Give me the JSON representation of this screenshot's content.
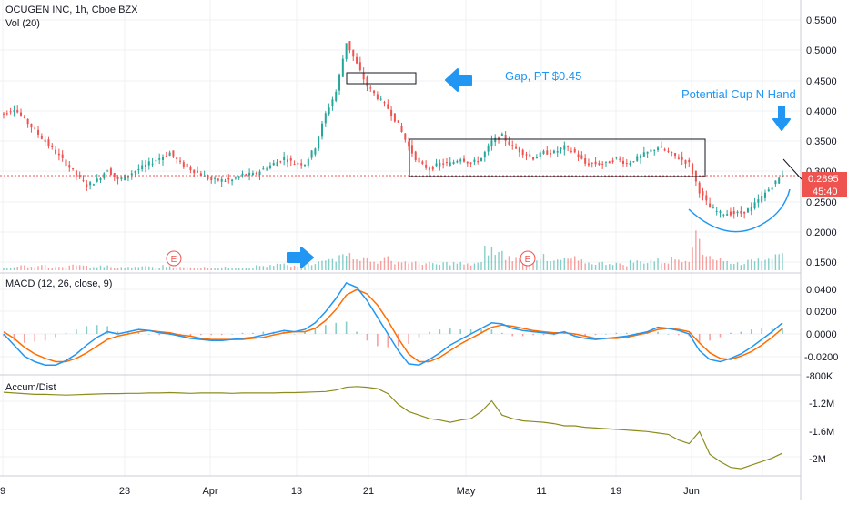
{
  "header": {
    "symbol_line": "OCUGEN INC, 1h, Cboe BZX",
    "volume_label": "Vol (20)"
  },
  "colors": {
    "up": "#26a69a",
    "down": "#ef5350",
    "annotation": "#2196f3",
    "macd_line": "#2196f3",
    "signal_line": "#ff6d00",
    "accum_line": "#8c8c1e",
    "price_tag_bg": "#ef5350",
    "grid": "#eef0f3",
    "axis_text": "#131722",
    "price_dotted": "#ef5350"
  },
  "x_axis": {
    "tick_labels": [
      "9",
      "23",
      "Apr",
      "13",
      "21",
      "May",
      "11",
      "19",
      "Jun"
    ]
  },
  "price_axis": {
    "ticks": [
      "0.5500",
      "0.5000",
      "0.4500",
      "0.4000",
      "0.3500",
      "0.3000",
      "0.2500",
      "0.2000",
      "0.1500"
    ],
    "current_price": "0.2895",
    "countdown": "45:40"
  },
  "annotations": {
    "gap_text": "Gap, PT $0.45",
    "cup_text": "Potential Cup N Hand",
    "earnings_marker": "E"
  },
  "macd": {
    "label": "MACD (12, 26, close, 9)",
    "ticks": [
      "0.0400",
      "0.0200",
      "0.0000",
      "-0.0200"
    ]
  },
  "accum": {
    "label": "Accum/Dist",
    "ticks": [
      "-800K",
      "-1.2M",
      "-1.6M",
      "-2M"
    ]
  },
  "chart_data": [
    {
      "type": "candlestick",
      "title": "OCUGEN INC, 1h, Cboe BZX",
      "x_ticks": [
        "9",
        "23",
        "Apr",
        "13",
        "21",
        "May",
        "11",
        "19",
        "Jun"
      ],
      "ylim": [
        0.13,
        0.57
      ],
      "last_price": 0.2895,
      "series": [
        {
          "name": "price",
          "close": [
            0.4,
            0.41,
            0.39,
            0.37,
            0.35,
            0.33,
            0.31,
            0.29,
            0.27,
            0.28,
            0.3,
            0.28,
            0.29,
            0.3,
            0.31,
            0.32,
            0.33,
            0.31,
            0.3,
            0.29,
            0.28,
            0.28,
            0.28,
            0.29,
            0.29,
            0.3,
            0.31,
            0.32,
            0.31,
            0.31,
            0.34,
            0.4,
            0.44,
            0.53,
            0.49,
            0.45,
            0.43,
            0.41,
            0.38,
            0.34,
            0.31,
            0.3,
            0.31,
            0.31,
            0.32,
            0.31,
            0.32,
            0.35,
            0.36,
            0.34,
            0.33,
            0.32,
            0.33,
            0.33,
            0.34,
            0.33,
            0.31,
            0.31,
            0.31,
            0.32,
            0.31,
            0.32,
            0.33,
            0.34,
            0.33,
            0.32,
            0.31,
            0.26,
            0.23,
            0.22,
            0.22,
            0.22,
            0.23,
            0.25,
            0.27,
            0.29
          ]
        }
      ]
    },
    {
      "type": "bar",
      "name": "Vol (20)",
      "values": [
        2,
        2,
        3,
        2,
        3,
        2,
        2,
        4,
        3,
        2,
        3,
        2,
        2,
        2,
        3,
        2,
        3,
        2,
        2,
        2,
        2,
        2,
        2,
        2,
        2,
        3,
        3,
        4,
        3,
        3,
        4,
        6,
        8,
        14,
        10,
        8,
        6,
        8,
        6,
        6,
        5,
        5,
        4,
        5,
        5,
        4,
        5,
        14,
        12,
        9,
        8,
        7,
        9,
        6,
        7,
        8,
        6,
        5,
        5,
        5,
        4,
        6,
        6,
        7,
        6,
        8,
        8,
        22,
        12,
        8,
        6,
        5,
        6,
        8,
        10,
        14
      ]
    },
    {
      "type": "line",
      "name": "MACD (12, 26, close, 9)",
      "ylim": [
        -0.03,
        0.05
      ],
      "series": [
        {
          "name": "MACD",
          "values": [
            0.0,
            -0.01,
            -0.02,
            -0.025,
            -0.028,
            -0.028,
            -0.024,
            -0.018,
            -0.01,
            -0.003,
            0.002,
            0.0,
            0.002,
            0.004,
            0.003,
            0.001,
            0.0,
            -0.002,
            -0.004,
            -0.005,
            -0.006,
            -0.006,
            -0.005,
            -0.004,
            -0.003,
            -0.001,
            0.001,
            0.003,
            0.002,
            0.004,
            0.01,
            0.02,
            0.032,
            0.046,
            0.042,
            0.03,
            0.015,
            0.0,
            -0.015,
            -0.027,
            -0.028,
            -0.023,
            -0.017,
            -0.01,
            -0.005,
            0.0,
            0.005,
            0.01,
            0.009,
            0.005,
            0.003,
            0.002,
            0.001,
            0.0,
            0.002,
            -0.002,
            -0.004,
            -0.005,
            -0.004,
            -0.003,
            -0.002,
            0.0,
            0.002,
            0.006,
            0.005,
            0.003,
            0.0,
            -0.015,
            -0.023,
            -0.025,
            -0.022,
            -0.018,
            -0.012,
            -0.005,
            0.002,
            0.01
          ]
        },
        {
          "name": "Signal",
          "values": [
            0.002,
            -0.004,
            -0.012,
            -0.018,
            -0.022,
            -0.025,
            -0.025,
            -0.022,
            -0.017,
            -0.011,
            -0.005,
            -0.002,
            0.0,
            0.002,
            0.003,
            0.002,
            0.001,
            -0.001,
            -0.002,
            -0.004,
            -0.005,
            -0.005,
            -0.005,
            -0.005,
            -0.004,
            -0.003,
            -0.001,
            0.001,
            0.002,
            0.002,
            0.005,
            0.012,
            0.022,
            0.035,
            0.04,
            0.036,
            0.026,
            0.012,
            -0.004,
            -0.018,
            -0.025,
            -0.025,
            -0.021,
            -0.015,
            -0.009,
            -0.004,
            0.001,
            0.006,
            0.008,
            0.007,
            0.005,
            0.003,
            0.002,
            0.001,
            0.001,
            0.0,
            -0.002,
            -0.004,
            -0.004,
            -0.004,
            -0.003,
            -0.001,
            0.001,
            0.004,
            0.005,
            0.004,
            0.002,
            -0.008,
            -0.017,
            -0.022,
            -0.023,
            -0.02,
            -0.016,
            -0.01,
            -0.003,
            0.005
          ]
        }
      ]
    },
    {
      "type": "line",
      "name": "Accum/Dist",
      "ylim": [
        -2200000,
        -800000
      ],
      "series": [
        {
          "name": "Accum/Dist",
          "values": [
            -1030000,
            -1040000,
            -1050000,
            -1060000,
            -1060000,
            -1065000,
            -1070000,
            -1065000,
            -1060000,
            -1055000,
            -1050000,
            -1050000,
            -1045000,
            -1045000,
            -1040000,
            -1040000,
            -1035000,
            -1040000,
            -1045000,
            -1040000,
            -1040000,
            -1040000,
            -1045000,
            -1040000,
            -1040000,
            -1040000,
            -1040000,
            -1035000,
            -1035000,
            -1030000,
            -1025000,
            -1020000,
            -1000000,
            -960000,
            -950000,
            -960000,
            -980000,
            -1050000,
            -1200000,
            -1300000,
            -1350000,
            -1400000,
            -1420000,
            -1450000,
            -1420000,
            -1400000,
            -1300000,
            -1150000,
            -1350000,
            -1400000,
            -1430000,
            -1440000,
            -1450000,
            -1470000,
            -1500000,
            -1500000,
            -1520000,
            -1530000,
            -1540000,
            -1550000,
            -1560000,
            -1570000,
            -1580000,
            -1600000,
            -1620000,
            -1700000,
            -1750000,
            -1580000,
            -1900000,
            -2000000,
            -2080000,
            -2100000,
            -2050000,
            -2000000,
            -1950000,
            -1880000
          ]
        }
      ]
    }
  ]
}
